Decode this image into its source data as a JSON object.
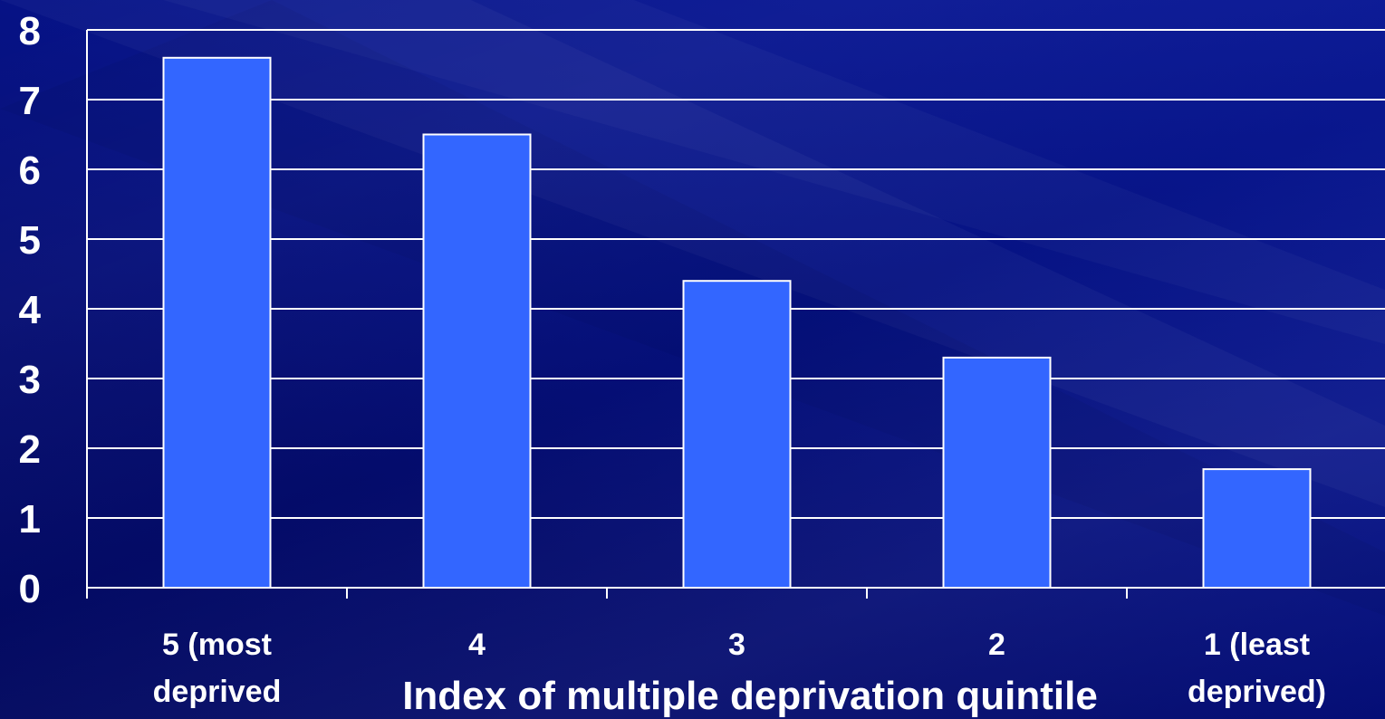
{
  "colors": {
    "background": "#050a78",
    "bar_fill": "#3366ff",
    "bar_stroke": "#ffffff",
    "gridline": "#ffffff",
    "text": "#ffffff"
  },
  "chart_data": {
    "type": "bar",
    "categories": [
      [
        "5 (most",
        "deprived"
      ],
      [
        "4"
      ],
      [
        "3"
      ],
      [
        "2"
      ],
      [
        "1 (least",
        "deprived)"
      ]
    ],
    "values": [
      7.6,
      6.5,
      4.4,
      3.3,
      1.7
    ],
    "title": "",
    "xlabel": "Index of multiple deprivation quintile",
    "ylabel": "",
    "ylim": [
      0,
      8
    ],
    "yticks": [
      0,
      1,
      2,
      3,
      4,
      5,
      6,
      7,
      8
    ],
    "grid": true,
    "legend": "none"
  }
}
